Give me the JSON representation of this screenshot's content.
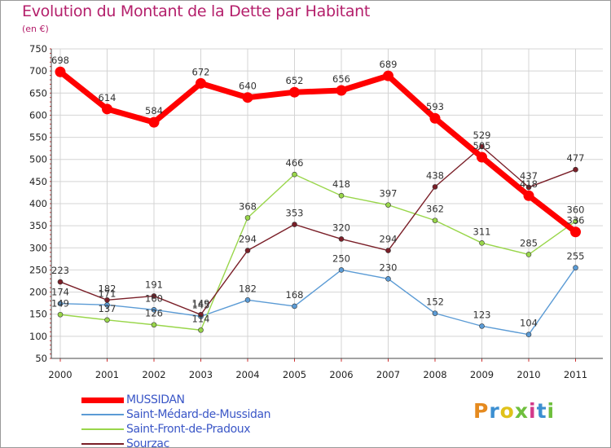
{
  "title": "Evolution du Montant de la Dette par Habitant",
  "subtitle": "(en €)",
  "logo_text": "Proxiti",
  "logo_colors": [
    "#e58a1f",
    "#3c8fd1",
    "#e0c21a",
    "#6fbf3d",
    "#d23a8a",
    "#3c8fd1",
    "#6fbf3d"
  ],
  "chart_data": {
    "type": "line",
    "title": "Evolution du Montant de la Dette par Habitant",
    "ylabel": "(en €)",
    "xlabel": "",
    "ylim": [
      50,
      750
    ],
    "y_ticks": [
      "50",
      "100",
      "150",
      "200",
      "250",
      "300",
      "350",
      "400",
      "450",
      "500",
      "550",
      "600",
      "650",
      "700",
      "750"
    ],
    "categories": [
      "2000",
      "2001",
      "2002",
      "2003",
      "2004",
      "2005",
      "2006",
      "2007",
      "2008",
      "2009",
      "2010",
      "2011"
    ],
    "grid": true,
    "legend_position": "bottom-left",
    "series": [
      {
        "name": "MUSSIDAN",
        "color": "#ff0000",
        "values": [
          698,
          614,
          584,
          672,
          640,
          652,
          656,
          689,
          593,
          505,
          418,
          336
        ],
        "labels": [
          "698",
          "614",
          "584",
          "672",
          "640",
          "652",
          "656",
          "689",
          "593",
          "505",
          "418",
          "336"
        ]
      },
      {
        "name": "Saint-Médard-de-Mussidan",
        "color": "#5b9bd5",
        "values": [
          174,
          171,
          160,
          145,
          182,
          168,
          250,
          230,
          152,
          123,
          104,
          255
        ],
        "labels": [
          "174",
          "171",
          "160",
          "145",
          "182",
          "168",
          "250",
          "230",
          "152",
          "123",
          "104",
          "255"
        ]
      },
      {
        "name": "Saint-Front-de-Pradoux",
        "color": "#99d64a",
        "values": [
          149,
          137,
          126,
          114,
          368,
          466,
          418,
          397,
          362,
          311,
          285,
          360
        ],
        "labels": [
          "149",
          "137",
          "126",
          "114",
          "368",
          "466",
          "418",
          "397",
          "362",
          "311",
          "285",
          "360"
        ]
      },
      {
        "name": "Sourzac",
        "color": "#7a1f28",
        "values": [
          223,
          182,
          191,
          149,
          294,
          353,
          320,
          294,
          438,
          529,
          437,
          477
        ],
        "labels": [
          "223",
          "182",
          "191",
          "149",
          "294",
          "353",
          "320",
          "294",
          "438",
          "529",
          "437",
          "477"
        ]
      }
    ]
  }
}
